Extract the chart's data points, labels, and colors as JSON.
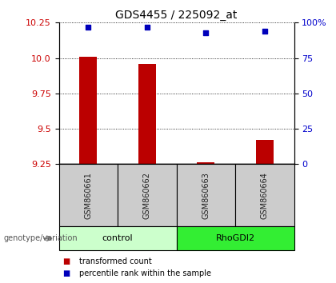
{
  "title": "GDS4455 / 225092_at",
  "samples": [
    "GSM860661",
    "GSM860662",
    "GSM860663",
    "GSM860664"
  ],
  "bar_values": [
    10.01,
    9.96,
    9.265,
    9.42
  ],
  "percentile_values": [
    97,
    97,
    93,
    94
  ],
  "y_min": 9.25,
  "y_max": 10.25,
  "y_ticks": [
    9.25,
    9.5,
    9.75,
    10.0,
    10.25
  ],
  "y_right_ticks": [
    0,
    25,
    50,
    75,
    100
  ],
  "y_right_labels": [
    "0",
    "25",
    "50",
    "75",
    "100%"
  ],
  "bar_color": "#bb0000",
  "percentile_color": "#0000bb",
  "groups": [
    {
      "label": "control",
      "indices": [
        0,
        1
      ],
      "color": "#ccffcc"
    },
    {
      "label": "RhoGDI2",
      "indices": [
        2,
        3
      ],
      "color": "#33ee33"
    }
  ],
  "tick_color_left": "#cc0000",
  "tick_color_right": "#0000cc",
  "genotype_label": "genotype/variation",
  "legend_bar_label": "transformed count",
  "legend_pct_label": "percentile rank within the sample",
  "bar_width": 0.3,
  "percentile_scale_min": 0,
  "percentile_scale_max": 100,
  "sample_box_color": "#cccccc",
  "sample_text_color": "#222222"
}
